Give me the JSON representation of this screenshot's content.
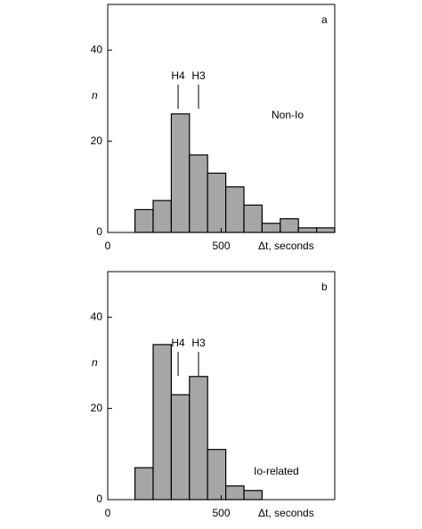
{
  "chart_data": [
    {
      "type": "histogram",
      "panel_label": "a",
      "note": "Non-Io",
      "ylabel": "n",
      "xlabel": "Δt, seconds",
      "bins": [
        120,
        200,
        280,
        360,
        440,
        520,
        600,
        680,
        760,
        840,
        920,
        1000
      ],
      "counts": [
        5,
        7,
        26,
        17,
        13,
        10,
        6,
        2,
        3,
        1,
        1
      ],
      "color": "#a6a6a6",
      "xlim": [
        0,
        1000
      ],
      "ylim": [
        0,
        50
      ],
      "xticks": [
        0,
        500
      ],
      "yticks": [
        0,
        20,
        40
      ],
      "annotations": [
        {
          "text": "H4",
          "x": 310
        },
        {
          "text": "H3",
          "x": 400
        }
      ]
    },
    {
      "type": "histogram",
      "panel_label": "b",
      "note": "Io-related",
      "ylabel": "n",
      "xlabel": "Δt, seconds",
      "bins": [
        120,
        200,
        280,
        360,
        440,
        520,
        600,
        680
      ],
      "counts": [
        7,
        34,
        23,
        27,
        11,
        3,
        2
      ],
      "color": "#a6a6a6",
      "xlim": [
        0,
        1000
      ],
      "ylim": [
        0,
        50
      ],
      "xticks": [
        0,
        500
      ],
      "yticks": [
        0,
        20,
        40
      ],
      "annotations": [
        {
          "text": "H4",
          "x": 310
        },
        {
          "text": "H3",
          "x": 400
        }
      ]
    }
  ]
}
